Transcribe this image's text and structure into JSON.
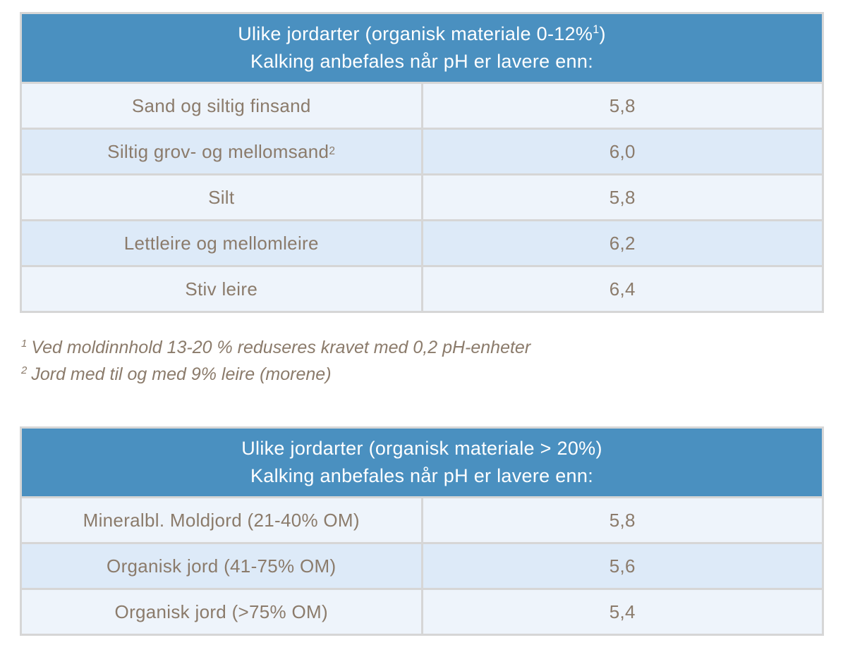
{
  "colors": {
    "header_bg": "#4a90c0",
    "header_text": "#ffffff",
    "row_odd_bg": "#eef4fb",
    "row_even_bg": "#ddeaf8",
    "border": "#d6d6d6",
    "body_text": "#8b7b6b"
  },
  "table1": {
    "header_line1_pre": "Ulike jordarter (organisk materiale 0-12%",
    "header_line1_sup": "1",
    "header_line1_post": ")",
    "header_line2": "Kalking anbefales når pH er lavere enn:",
    "rows": [
      {
        "label": "Sand og siltig finsand",
        "sup": "",
        "value": "5,8"
      },
      {
        "label": "Siltig grov- og mellomsand",
        "sup": "2",
        "value": "6,0"
      },
      {
        "label": "Silt",
        "sup": "",
        "value": "5,8"
      },
      {
        "label": "Lettleire og mellomleire",
        "sup": "",
        "value": "6,2"
      },
      {
        "label": "Stiv leire",
        "sup": "",
        "value": "6,4"
      }
    ]
  },
  "footnotes": [
    {
      "marker": "1",
      "text": "Ved moldinnhold 13-20 % reduseres kravet med 0,2 pH-enheter"
    },
    {
      "marker": "2",
      "text": "Jord med til og med 9% leire (morene)"
    }
  ],
  "table2": {
    "header_line1": "Ulike jordarter (organisk materiale > 20%)",
    "header_line2": "Kalking anbefales når pH er lavere enn:",
    "rows": [
      {
        "label": "Mineralbl. Moldjord (21-40% OM)",
        "value": "5,8"
      },
      {
        "label": "Organisk jord (41-75% OM)",
        "value": "5,6"
      },
      {
        "label": "Organisk jord (>75% OM)",
        "value": "5,4"
      }
    ]
  }
}
